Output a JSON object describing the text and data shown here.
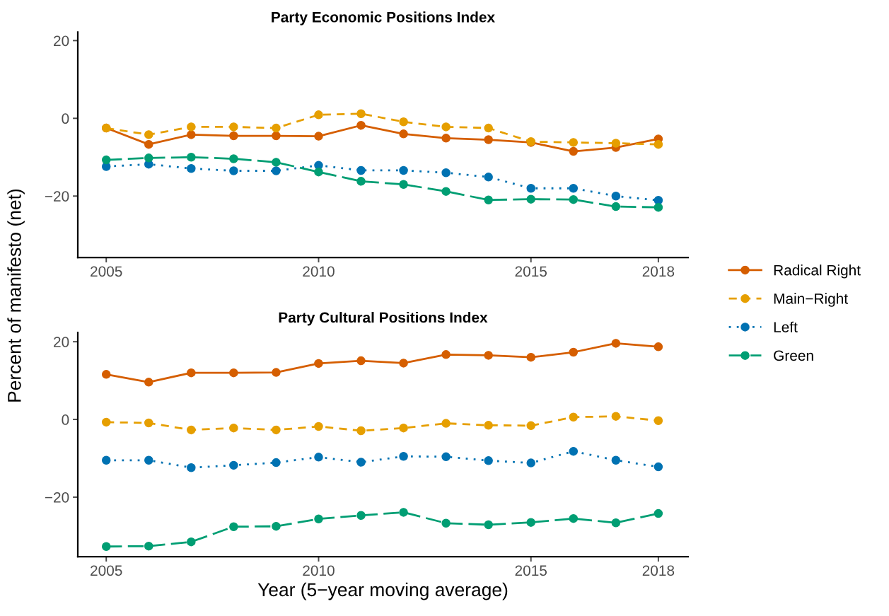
{
  "chart_data": [
    {
      "type": "line",
      "title": "Party Economic Positions Index",
      "ylabel": "Percent of manifesto (net)",
      "x": [
        2005,
        2006,
        2007,
        2008,
        2009,
        2010,
        2011,
        2012,
        2013,
        2014,
        2015,
        2016,
        2017,
        2018
      ],
      "xlim": [
        2004.33,
        2018.7
      ],
      "xticks": [
        2005,
        2010,
        2015,
        2018
      ],
      "ylim": [
        -35.8,
        22.2
      ],
      "yticks": [
        {
          "value": -20,
          "label": "−20"
        },
        0,
        20
      ],
      "grid": false,
      "legend": "right",
      "marker": "circle",
      "series": [
        {
          "name": "Radical Right",
          "color": "#d55e00",
          "line_style": "solid",
          "values": [
            -2.5,
            -6.7,
            -4.2,
            -4.5,
            -4.5,
            -4.6,
            -1.8,
            -4.0,
            -5.1,
            -5.5,
            -6.2,
            -8.5,
            -7.5,
            -5.3
          ]
        },
        {
          "name": "Main−Right",
          "color": "#e69f00",
          "line_style": "dashed",
          "values": [
            -2.5,
            -4.2,
            -2.2,
            -2.2,
            -2.5,
            0.9,
            1.2,
            -0.9,
            -2.2,
            -2.5,
            -6.0,
            -6.2,
            -6.4,
            -6.7
          ]
        },
        {
          "name": "Left",
          "color": "#0072b2",
          "line_style": "dotted",
          "values": [
            -12.4,
            -11.8,
            -12.9,
            -13.5,
            -13.5,
            -12.1,
            -13.4,
            -13.4,
            -14.0,
            -15.1,
            -18.0,
            -18.0,
            -20.0,
            -21.1
          ]
        },
        {
          "name": "Green",
          "color": "#009e73",
          "line_style": "longdash",
          "values": [
            -10.7,
            -10.2,
            -10.0,
            -10.4,
            -11.3,
            -13.8,
            -16.2,
            -17.0,
            -18.8,
            -21.0,
            -20.8,
            -20.9,
            -22.7,
            -22.9
          ]
        }
      ]
    },
    {
      "type": "line",
      "title": "Party Cultural Positions Index",
      "xlabel": "Year (5−year moving average)",
      "x": [
        2005,
        2006,
        2007,
        2008,
        2009,
        2010,
        2011,
        2012,
        2013,
        2014,
        2015,
        2016,
        2017,
        2018
      ],
      "xlim": [
        2004.33,
        2018.7
      ],
      "xticks": [
        2005,
        2010,
        2015,
        2018
      ],
      "ylim": [
        -35.3,
        22.4
      ],
      "yticks": [
        {
          "value": -20,
          "label": "−20"
        },
        0,
        20
      ],
      "grid": false,
      "marker": "circle",
      "series": [
        {
          "color": "#d55e00",
          "line_style": "solid",
          "values": [
            11.6,
            9.6,
            12.0,
            12.0,
            12.1,
            14.4,
            15.1,
            14.5,
            16.7,
            16.5,
            16.0,
            17.3,
            19.6,
            18.7
          ]
        },
        {
          "color": "#e69f00",
          "line_style": "dashed",
          "values": [
            -0.7,
            -0.9,
            -2.7,
            -2.2,
            -2.7,
            -1.8,
            -2.9,
            -2.2,
            -1.0,
            -1.5,
            -1.6,
            0.6,
            0.8,
            -0.3
          ]
        },
        {
          "color": "#0072b2",
          "line_style": "dotted",
          "values": [
            -10.5,
            -10.5,
            -12.4,
            -11.8,
            -11.1,
            -9.7,
            -11.0,
            -9.5,
            -9.6,
            -10.6,
            -11.2,
            -8.2,
            -10.5,
            -12.2
          ]
        },
        {
          "color": "#009e73",
          "line_style": "longdash",
          "values": [
            -32.7,
            -32.6,
            -31.5,
            -27.6,
            -27.5,
            -25.6,
            -24.7,
            -23.9,
            -26.7,
            -27.1,
            -26.5,
            -25.5,
            -26.6,
            -24.2
          ]
        }
      ]
    }
  ]
}
